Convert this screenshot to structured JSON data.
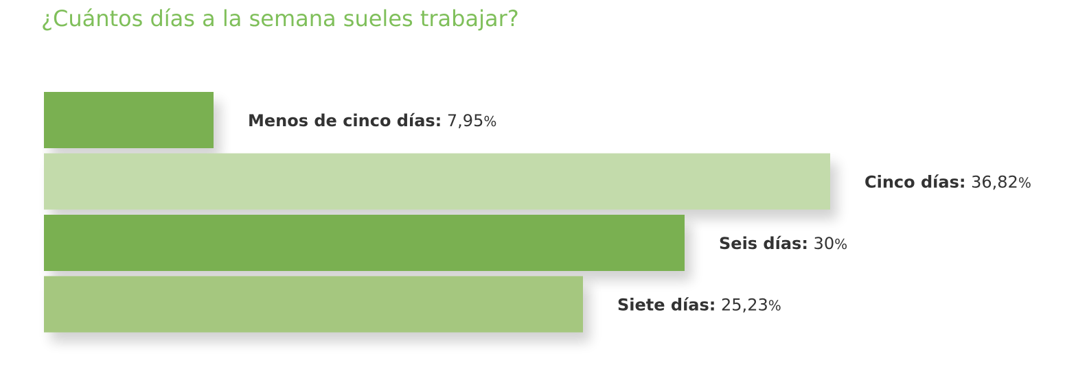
{
  "title": "¿Cuántos días a la semana sueles trabajar?",
  "chart_data": {
    "type": "bar",
    "orientation": "horizontal",
    "title": "¿Cuántos días a la semana sueles trabajar?",
    "categories": [
      "Menos de cinco días",
      "Cinco días",
      "Seis días",
      "Siete días"
    ],
    "values": [
      7.95,
      36.82,
      30,
      25.23
    ],
    "value_labels": [
      "7,95",
      "36,82",
      "30",
      "25,23"
    ],
    "unit": "%",
    "colors": [
      "#7ab051",
      "#c3dbab",
      "#7ab051",
      "#a5c77f"
    ],
    "xlim": [
      0,
      36.82
    ],
    "grid": false,
    "legend": "none"
  }
}
